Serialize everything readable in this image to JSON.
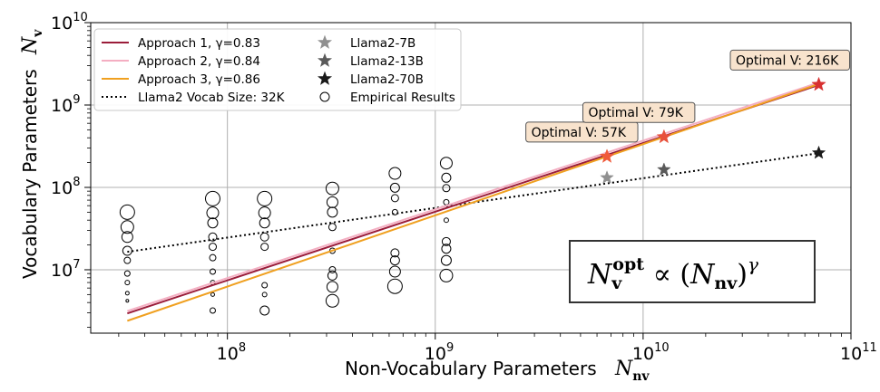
{
  "chart_data": {
    "type": "scatter",
    "x_scale": "log",
    "y_scale": "log",
    "xlim": [
      22000000,
      100000000000
    ],
    "ylim": [
      1700000,
      10000000000
    ],
    "grid": true,
    "legend_position": "top-left",
    "xlabel": "Non-Vocabulary Parameters",
    "xlabel_symbol": "N",
    "xlabel_sub": "nv",
    "ylabel": "Vocabulary Parameters",
    "ylabel_symbol": "N",
    "ylabel_sub": "v",
    "x_ticks": [
      {
        "value": 100000000,
        "base": "10",
        "exp": "8"
      },
      {
        "value": 1000000000,
        "base": "10",
        "exp": "9"
      },
      {
        "value": 10000000000,
        "base": "10",
        "exp": "10"
      },
      {
        "value": 100000000000,
        "base": "10",
        "exp": "11"
      }
    ],
    "y_ticks": [
      {
        "value": 10000000,
        "base": "10",
        "exp": "7"
      },
      {
        "value": 100000000,
        "base": "10",
        "exp": "8"
      },
      {
        "value": 1000000000,
        "base": "10",
        "exp": "9"
      },
      {
        "value": 10000000000,
        "base": "10",
        "exp": "10"
      }
    ],
    "fit_lines": [
      {
        "name": "Approach 1, γ=0.83",
        "label_prefix": "Approach 1, ",
        "gamma_label": "γ=0.83",
        "color": "#9b1d3a",
        "x": [
          33000000,
          70000000000
        ],
        "y": [
          2950000,
          1750000000
        ]
      },
      {
        "name": "Approach 2, γ=0.84",
        "label_prefix": "Approach 2, ",
        "gamma_label": "γ=0.84",
        "color": "#f4aec2",
        "x": [
          33000000,
          70000000000
        ],
        "y": [
          3150000,
          1870000000
        ]
      },
      {
        "name": "Approach 3, γ=0.86",
        "label_prefix": "Approach 3, ",
        "gamma_label": "γ=0.86",
        "color": "#f0a020",
        "x": [
          33000000,
          70000000000
        ],
        "y": [
          2400000,
          1800000000
        ]
      }
    ],
    "vocab_line": {
      "name": "Llama2 Vocab Size: 32K",
      "x": [
        33000000,
        70000000000
      ],
      "y": [
        16500000,
        260000000
      ]
    },
    "llama_points": [
      {
        "name": "Llama2-7B",
        "x": 6700000000,
        "y": 131000000,
        "color": "#909090"
      },
      {
        "name": "Llama2-13B",
        "x": 12600000000,
        "y": 164000000,
        "color": "#5a5a5a"
      },
      {
        "name": "Llama2-70B",
        "x": 70000000000,
        "y": 262000000,
        "color": "#1a1a1a"
      }
    ],
    "optimal_points": [
      {
        "x": 6700000000,
        "y": 237000000,
        "label": "Optimal V: 57K",
        "color": "#f05a3a"
      },
      {
        "x": 12600000000,
        "y": 410000000,
        "label": "Optimal V: 79K",
        "color": "#e8503a"
      },
      {
        "x": 70000000000,
        "y": 1770000000,
        "label": "Optimal V: 216K",
        "color": "#d83030"
      }
    ],
    "empirical_legend": "Empirical Results",
    "empirical_groups": [
      {
        "x": 33000000,
        "y": [
          50000000,
          33000000,
          25000000,
          17000000,
          13000000,
          9000000,
          7000000,
          5200000,
          4200000
        ],
        "s": [
          8,
          7,
          6,
          5,
          3.5,
          3,
          2.5,
          2,
          1.5
        ]
      },
      {
        "x": 85000000,
        "y": [
          73000000,
          49000000,
          37000000,
          25000000,
          19000000,
          14000000,
          9500000,
          7000000,
          5000000,
          3200000
        ],
        "s": [
          8,
          6.5,
          5.5,
          4.5,
          4,
          3.5,
          3,
          2.5,
          2,
          3
        ]
      },
      {
        "x": 151000000,
        "y": [
          73000000,
          49000000,
          37000000,
          25000000,
          19000000,
          6500000,
          5000000,
          3200000
        ],
        "s": [
          8,
          6.5,
          5.5,
          4.5,
          4,
          3,
          2.5,
          5
        ]
      },
      {
        "x": 320000000,
        "y": [
          97000000,
          66000000,
          50000000,
          33000000,
          17000000,
          10000000,
          8500000,
          6200000,
          4200000
        ],
        "s": [
          7,
          6,
          5.5,
          4,
          3,
          3.5,
          5,
          6,
          7
        ]
      },
      {
        "x": 640000000,
        "y": [
          148000000,
          99000000,
          74000000,
          50000000,
          16000000,
          13000000,
          9500000,
          6300000
        ],
        "s": [
          6.5,
          5,
          4,
          3,
          4.5,
          5,
          6,
          8
        ]
      },
      {
        "x": 1130000000,
        "y": [
          197000000,
          131000000,
          98000000,
          66000000,
          40000000,
          22000000,
          18000000,
          13000000,
          8500000
        ],
        "s": [
          6.5,
          5,
          4,
          3,
          2.5,
          4.5,
          5,
          5.5,
          7
        ]
      }
    ],
    "formula": {
      "symbol": "N",
      "sub": "v",
      "sup": "opt",
      "relation": " ∝ (",
      "inner": "N",
      "inner_sub": "nv",
      "close": ")",
      "exponent": "γ"
    }
  }
}
